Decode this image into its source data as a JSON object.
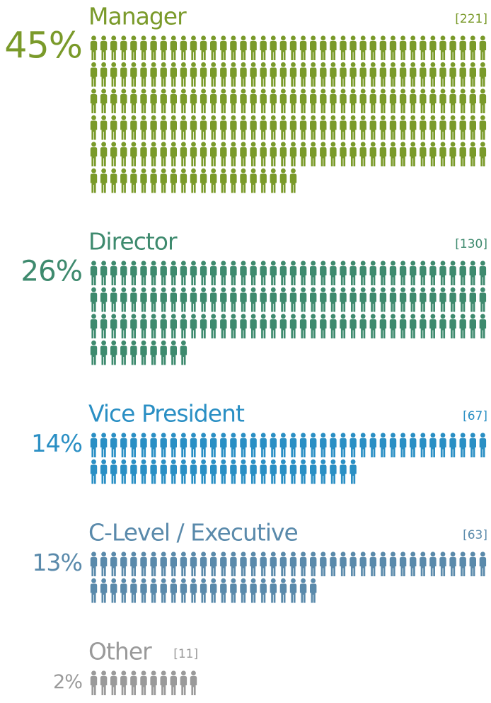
{
  "chart_data": {
    "type": "pictogram",
    "categories": [
      "Manager",
      "Director",
      "Vice President",
      "C-Level / Executive",
      "Other"
    ],
    "values": [
      221,
      130,
      67,
      63,
      11
    ],
    "value_labels": [
      "[221]",
      "[130]",
      "[67]",
      "[63]",
      "[11]"
    ],
    "percents": [
      45,
      26,
      14,
      13,
      2
    ],
    "percent_labels": [
      "45%",
      "26%",
      "14%",
      "13%",
      "2%"
    ],
    "colors": [
      "#7a9a2a",
      "#3e8a6e",
      "#2a8fc4",
      "#5a8aab",
      "#9a9a9a"
    ]
  }
}
